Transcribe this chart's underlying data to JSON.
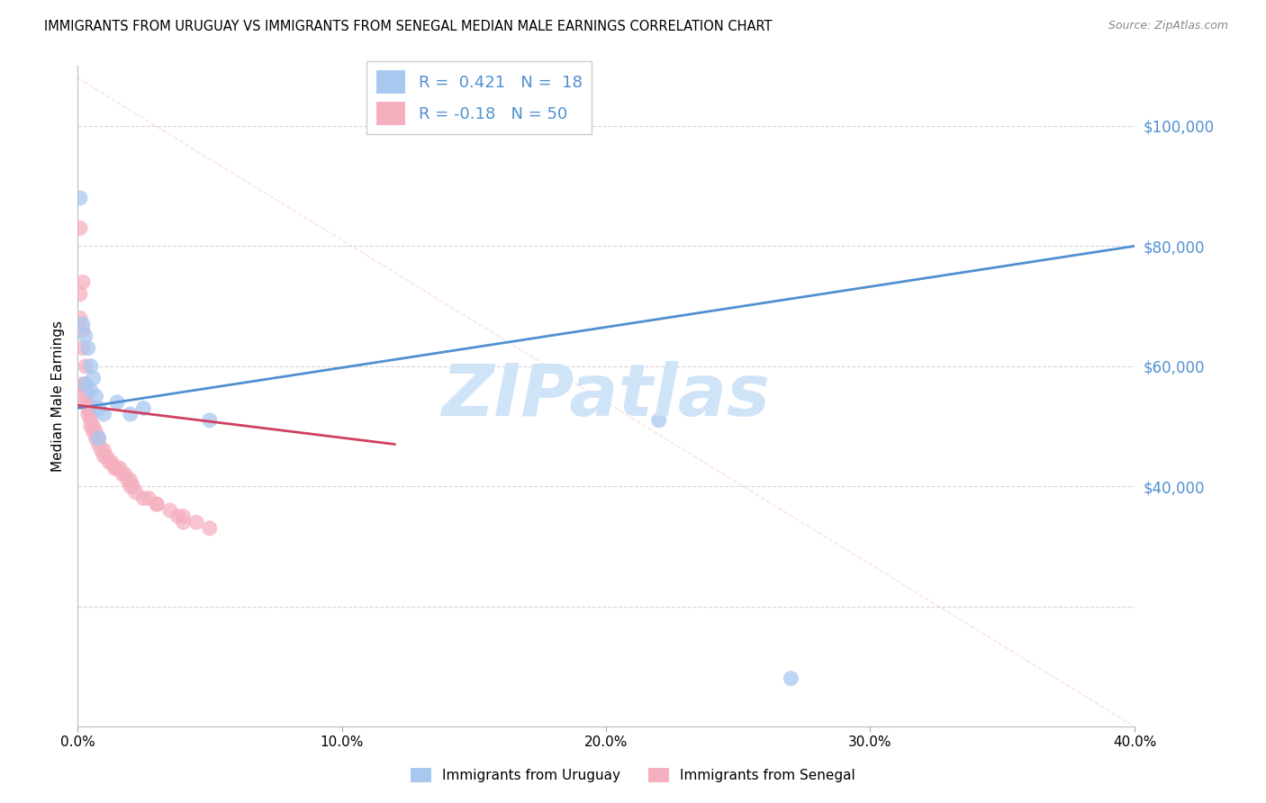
{
  "title": "IMMIGRANTS FROM URUGUAY VS IMMIGRANTS FROM SENEGAL MEDIAN MALE EARNINGS CORRELATION CHART",
  "source": "Source: ZipAtlas.com",
  "xlabel_ticks": [
    "0.0%",
    "10.0%",
    "20.0%",
    "30.0%",
    "40.0%"
  ],
  "xlabel_vals": [
    0.0,
    0.1,
    0.2,
    0.3,
    0.4
  ],
  "ylabel_right_labels": [
    "$40,000",
    "$60,000",
    "$80,000",
    "$100,000"
  ],
  "ylabel_right_vals": [
    40000,
    60000,
    80000,
    100000
  ],
  "ylabel_left": "Median Male Earnings",
  "legend_label1": "Immigrants from Uruguay",
  "legend_label2": "Immigrants from Senegal",
  "R_uruguay": 0.421,
  "N_uruguay": 18,
  "R_senegal": -0.18,
  "N_senegal": 50,
  "color_uruguay": "#A8C8F0",
  "color_senegal": "#F5B0C0",
  "color_line_uruguay": "#5090D0",
  "color_line_senegal": "#D04060",
  "watermark": "ZIPatlas",
  "watermark_color": "#D0E4F8",
  "uruguay_x": [
    0.001,
    0.002,
    0.003,
    0.004,
    0.005,
    0.006,
    0.007,
    0.008,
    0.01,
    0.015,
    0.02,
    0.025,
    0.05,
    0.22,
    0.27,
    0.005,
    0.008,
    0.003
  ],
  "uruguay_y": [
    88000,
    67000,
    65000,
    63000,
    60000,
    58000,
    55000,
    53000,
    52000,
    54000,
    52000,
    53000,
    51000,
    51000,
    8000,
    56000,
    48000,
    57000
  ],
  "senegal_x": [
    0.001,
    0.001,
    0.001,
    0.002,
    0.002,
    0.002,
    0.003,
    0.003,
    0.003,
    0.003,
    0.004,
    0.004,
    0.004,
    0.005,
    0.005,
    0.005,
    0.006,
    0.006,
    0.007,
    0.007,
    0.008,
    0.008,
    0.009,
    0.01,
    0.01,
    0.011,
    0.012,
    0.013,
    0.014,
    0.015,
    0.016,
    0.017,
    0.018,
    0.019,
    0.02,
    0.02,
    0.021,
    0.022,
    0.025,
    0.027,
    0.03,
    0.03,
    0.035,
    0.038,
    0.04,
    0.04,
    0.045,
    0.05,
    0.002,
    0.003
  ],
  "senegal_y": [
    83000,
    72000,
    68000,
    74000,
    66000,
    63000,
    60000,
    57000,
    56000,
    55000,
    54000,
    53000,
    52000,
    52000,
    51000,
    50000,
    50000,
    49000,
    49000,
    48000,
    48000,
    47000,
    46000,
    46000,
    45000,
    45000,
    44000,
    44000,
    43000,
    43000,
    43000,
    42000,
    42000,
    41000,
    41000,
    40000,
    40000,
    39000,
    38000,
    38000,
    37000,
    37000,
    36000,
    35000,
    35000,
    34000,
    34000,
    33000,
    57000,
    54000
  ],
  "xlim": [
    0.0,
    0.4
  ],
  "ylim": [
    0,
    110000
  ],
  "figsize": [
    14.06,
    8.92
  ],
  "dpi": 100,
  "grid_color": "#CCCCCC",
  "background_color": "#FFFFFF",
  "uru_line_x": [
    0.0,
    0.4
  ],
  "uru_line_y": [
    53000,
    80000
  ],
  "sen_line_x": [
    0.0,
    0.12
  ],
  "sen_line_y": [
    53500,
    47000
  ],
  "dash_line_x": [
    0.0,
    0.4
  ],
  "dash_line_y": [
    108000,
    0
  ]
}
